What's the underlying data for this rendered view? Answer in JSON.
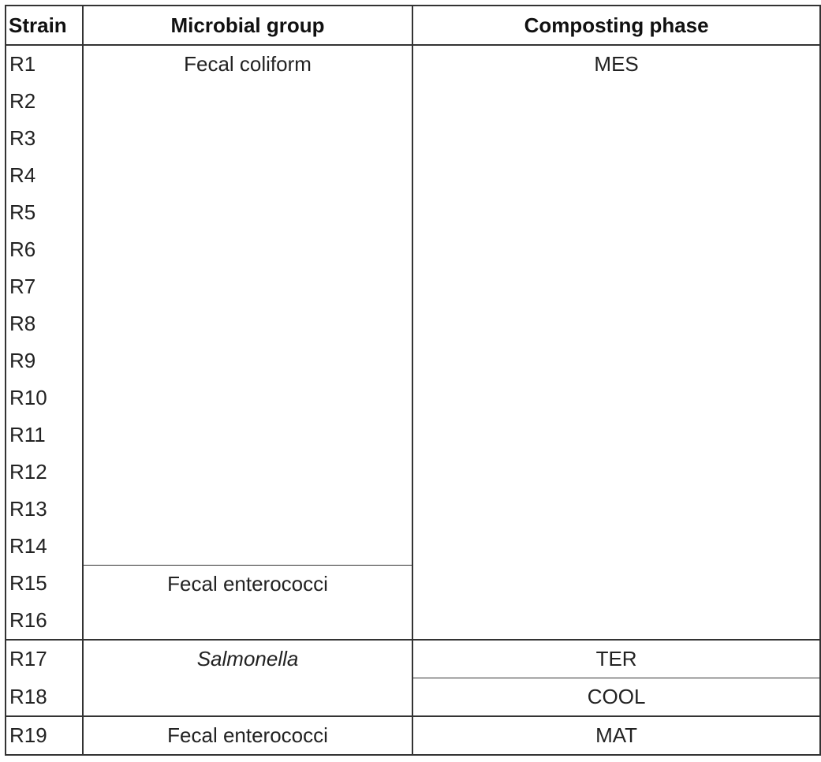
{
  "table": {
    "headers": {
      "strain": "Strain",
      "group": "Microbial group",
      "phase": "Composting phase"
    },
    "strains": [
      "R1",
      "R2",
      "R3",
      "R4",
      "R5",
      "R6",
      "R7",
      "R8",
      "R9",
      "R10",
      "R11",
      "R12",
      "R13",
      "R14",
      "R15",
      "R16",
      "R17",
      "R18",
      "R19"
    ],
    "groups": {
      "fecal_coliform": "Fecal coliform",
      "fecal_enterococci_1": "Fecal enterococci",
      "salmonella": "Salmonella",
      "fecal_enterococci_2": "Fecal enterococci"
    },
    "phases": {
      "mes": "MES",
      "ter": "TER",
      "cool": "COOL",
      "mat": "MAT"
    }
  }
}
